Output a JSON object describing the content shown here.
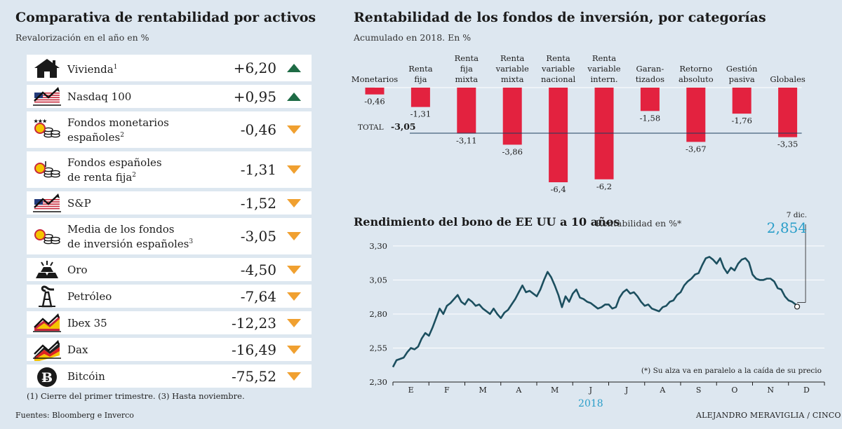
{
  "left": {
    "title": "Comparativa de rentabilidad por activos",
    "subtitle": "Revalorización en el año en %",
    "items": [
      {
        "icon": "house-icon",
        "label_lines": [
          "Vivienda"
        ],
        "sup": "1",
        "value": "+6,20",
        "trend": "up"
      },
      {
        "icon": "nasdaq-flag-chart-icon",
        "label_lines": [
          "Nasdaq 100"
        ],
        "sup": "",
        "value": "+0,95",
        "trend": "up"
      },
      {
        "icon": "money-market-coins-icon",
        "label_lines": [
          "Fondos monetarios",
          "españoles"
        ],
        "sup": "2",
        "value": "-0,46",
        "trend": "down"
      },
      {
        "icon": "spanish-fixed-income-coins-icon",
        "label_lines": [
          "Fondos españoles",
          "de renta fija"
        ],
        "sup": "2",
        "value": "-1,31",
        "trend": "down"
      },
      {
        "icon": "sp-flag-chart-icon",
        "label_lines": [
          "S&P"
        ],
        "sup": "",
        "value": "-1,52",
        "trend": "down"
      },
      {
        "icon": "spanish-funds-coins-icon",
        "label_lines": [
          "Media de los fondos",
          "de inversión españoles"
        ],
        "sup": "3",
        "value": "-3,05",
        "trend": "down"
      },
      {
        "icon": "gold-bars-icon",
        "label_lines": [
          "Oro"
        ],
        "sup": "",
        "value": "-4,50",
        "trend": "down"
      },
      {
        "icon": "oil-pump-icon",
        "label_lines": [
          "Petróleo"
        ],
        "sup": "",
        "value": "-7,64",
        "trend": "down"
      },
      {
        "icon": "ibex-flag-chart-icon",
        "label_lines": [
          "Ibex 35"
        ],
        "sup": "",
        "value": "-12,23",
        "trend": "down"
      },
      {
        "icon": "dax-flag-chart-icon",
        "label_lines": [
          "Dax"
        ],
        "sup": "",
        "value": "-16,49",
        "trend": "down"
      },
      {
        "icon": "bitcoin-icon",
        "label_lines": [
          "Bitcóin"
        ],
        "sup": "",
        "value": "-75,52",
        "trend": "down"
      }
    ],
    "footnote": "(1) Cierre del primer trimestre. (3) Hasta noviembre.",
    "sources": "Fuentes: Bloomberg e Inverco"
  },
  "right": {
    "funds_title": "Rentabilidad de los fondos de inversión, por categorías",
    "funds_subtitle": "Acumulado en 2018. En %",
    "bond_title": "Rendimiento del bono de EE UU a 10 años",
    "bond_unit": "Rentabilidad en %*",
    "bond_note": "(*) Su alza va en paralelo a la caída de su precio",
    "credit": "ALEJANDRO MERAVIGLIA / CINCO DÍAS"
  },
  "colors": {
    "background": "#dde7f0",
    "bar_red": "#e3223f",
    "line_teal": "#1c4f5f",
    "arrow_up": "#1e6b45",
    "arrow_down": "#f0a030",
    "accent_blue": "#2a9ec9"
  },
  "chart_data": [
    {
      "type": "bar",
      "title": "Rentabilidad de los fondos de inversión, por categorías",
      "subtitle": "Acumulado en 2018. En %",
      "categories": [
        [
          "Monetarios"
        ],
        [
          "Renta",
          "fija"
        ],
        [
          "Renta",
          "fija",
          "mixta"
        ],
        [
          "Renta",
          "variable",
          "mixta"
        ],
        [
          "Renta",
          "variable",
          "nacional"
        ],
        [
          "Renta",
          "variable",
          "intern."
        ],
        [
          "Garan-",
          "tizados"
        ],
        [
          "Retorno",
          "absoluto"
        ],
        [
          "Gestión",
          "pasiva"
        ],
        [
          "Globales"
        ]
      ],
      "values": [
        -0.46,
        -1.31,
        -3.11,
        -3.86,
        -6.4,
        -6.2,
        -1.58,
        -3.67,
        -1.76,
        -3.35
      ],
      "value_labels": [
        "-0,46",
        "-1,31",
        "-3,11",
        "-3,86",
        "-6,4",
        "-6,2",
        "-1,58",
        "-3,67",
        "-1,76",
        "-3,35"
      ],
      "total_label": "TOTAL",
      "total_value_label": "-3,05",
      "total_value": -3.05,
      "ylim": [
        -6.4,
        0
      ]
    },
    {
      "type": "line",
      "title": "Rendimiento del bono de EE UU a 10 años",
      "ylabel": "Rentabilidad en %*",
      "year_label": "2018",
      "months": [
        "E",
        "F",
        "M",
        "A",
        "M",
        "J",
        "J",
        "A",
        "S",
        "O",
        "N",
        "D"
      ],
      "y_ticks": [
        2.3,
        2.55,
        2.8,
        3.05,
        3.3
      ],
      "y_tick_labels": [
        "2,30",
        "2,55",
        "2,80",
        "3,05",
        "3,30"
      ],
      "ylim": [
        2.3,
        3.32
      ],
      "x": [
        0.0,
        0.1,
        0.2,
        0.3,
        0.4,
        0.5,
        0.6,
        0.7,
        0.8,
        0.9,
        1.0,
        1.1,
        1.2,
        1.3,
        1.4,
        1.5,
        1.6,
        1.7,
        1.8,
        1.9,
        2.0,
        2.1,
        2.2,
        2.3,
        2.4,
        2.5,
        2.6,
        2.7,
        2.8,
        2.9,
        3.0,
        3.1,
        3.2,
        3.3,
        3.4,
        3.5,
        3.6,
        3.7,
        3.8,
        3.9,
        4.0,
        4.1,
        4.2,
        4.3,
        4.4,
        4.5,
        4.6,
        4.7,
        4.8,
        4.9,
        5.0,
        5.1,
        5.2,
        5.3,
        5.4,
        5.5,
        5.6,
        5.7,
        5.8,
        5.9,
        6.0,
        6.1,
        6.2,
        6.3,
        6.4,
        6.5,
        6.6,
        6.7,
        6.8,
        6.9,
        7.0,
        7.1,
        7.2,
        7.3,
        7.4,
        7.5,
        7.6,
        7.7,
        7.8,
        7.9,
        8.0,
        8.1,
        8.2,
        8.3,
        8.4,
        8.5,
        8.6,
        8.7,
        8.8,
        8.9,
        9.0,
        9.1,
        9.2,
        9.3,
        9.4,
        9.5,
        9.6,
        9.7,
        9.8,
        9.9,
        10.0,
        10.1,
        10.2,
        10.3,
        10.4,
        10.5,
        10.6,
        10.7,
        10.8,
        10.9,
        11.0,
        11.1,
        11.2,
        11.24
      ],
      "y": [
        2.41,
        2.46,
        2.47,
        2.48,
        2.52,
        2.55,
        2.54,
        2.56,
        2.62,
        2.66,
        2.64,
        2.7,
        2.77,
        2.84,
        2.8,
        2.86,
        2.88,
        2.91,
        2.94,
        2.89,
        2.87,
        2.91,
        2.89,
        2.86,
        2.87,
        2.84,
        2.82,
        2.8,
        2.84,
        2.8,
        2.77,
        2.81,
        2.83,
        2.87,
        2.91,
        2.96,
        3.01,
        2.96,
        2.97,
        2.95,
        2.93,
        2.98,
        3.05,
        3.11,
        3.07,
        3.01,
        2.94,
        2.85,
        2.93,
        2.89,
        2.95,
        2.98,
        2.92,
        2.91,
        2.89,
        2.88,
        2.86,
        2.84,
        2.85,
        2.87,
        2.87,
        2.84,
        2.85,
        2.92,
        2.96,
        2.98,
        2.95,
        2.96,
        2.93,
        2.89,
        2.86,
        2.87,
        2.84,
        2.83,
        2.82,
        2.85,
        2.86,
        2.89,
        2.9,
        2.94,
        2.96,
        3.01,
        3.04,
        3.06,
        3.09,
        3.1,
        3.16,
        3.21,
        3.22,
        3.2,
        3.17,
        3.21,
        3.14,
        3.1,
        3.14,
        3.12,
        3.17,
        3.2,
        3.21,
        3.18,
        3.09,
        3.06,
        3.05,
        3.05,
        3.06,
        3.06,
        3.04,
        2.99,
        2.98,
        2.93,
        2.9,
        2.89,
        2.87,
        2.854
      ],
      "end_date_label": "7 dic.",
      "end_value_label": "2,854",
      "end_value": 2.854
    }
  ]
}
